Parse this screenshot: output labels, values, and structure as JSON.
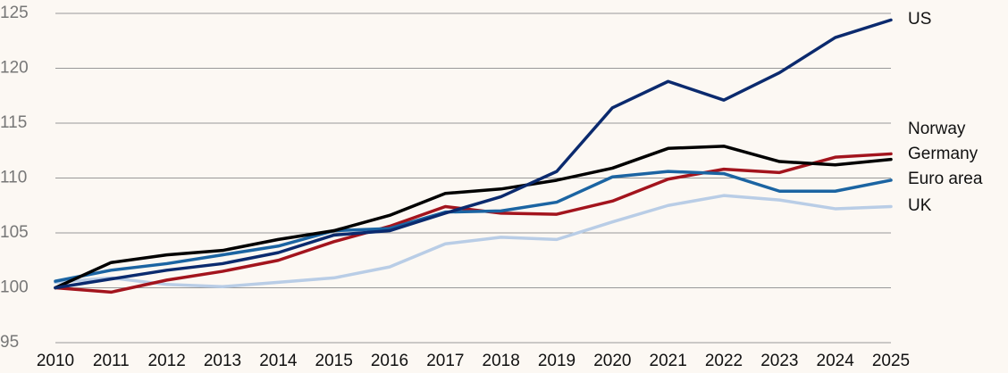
{
  "chart_data": {
    "type": "line",
    "x": [
      2010,
      2011,
      2012,
      2013,
      2014,
      2015,
      2016,
      2017,
      2018,
      2019,
      2020,
      2021,
      2022,
      2023,
      2024,
      2025
    ],
    "series": [
      {
        "name": "UK",
        "color": "#b9cde6",
        "values": [
          100.5,
          100.9,
          100.3,
          100.1,
          100.5,
          100.9,
          101.9,
          104.0,
          104.6,
          104.4,
          106.0,
          107.5,
          108.4,
          108.0,
          107.2,
          107.4
        ]
      },
      {
        "name": "Germany",
        "color": "#a3141d",
        "values": [
          100,
          99.6,
          100.7,
          101.5,
          102.5,
          104.2,
          105.6,
          107.4,
          106.8,
          106.7,
          107.9,
          109.9,
          110.8,
          110.5,
          111.9,
          112.2
        ]
      },
      {
        "name": "Euro area",
        "color": "#1b64a2",
        "values": [
          100.6,
          101.6,
          102.2,
          103.0,
          103.8,
          105.2,
          105.4,
          106.9,
          107.0,
          107.8,
          110.1,
          110.6,
          110.4,
          108.8,
          108.8,
          109.8
        ]
      },
      {
        "name": "Norway",
        "color": "#000000",
        "values": [
          100,
          102.3,
          103.0,
          103.4,
          104.4,
          105.2,
          106.6,
          108.6,
          109.0,
          109.8,
          110.9,
          112.7,
          112.9,
          111.5,
          111.2,
          111.7
        ]
      },
      {
        "name": "US",
        "color": "#0b2a6e",
        "values": [
          100,
          100.8,
          101.6,
          102.2,
          103.2,
          104.8,
          105.2,
          106.8,
          108.3,
          110.6,
          116.4,
          118.8,
          117.1,
          119.6,
          122.8,
          124.4
        ]
      }
    ],
    "xlim": [
      2010,
      2025
    ],
    "ylim": [
      95,
      125
    ],
    "yticks": [
      95,
      100,
      105,
      110,
      115,
      120,
      125
    ],
    "grid": true
  }
}
